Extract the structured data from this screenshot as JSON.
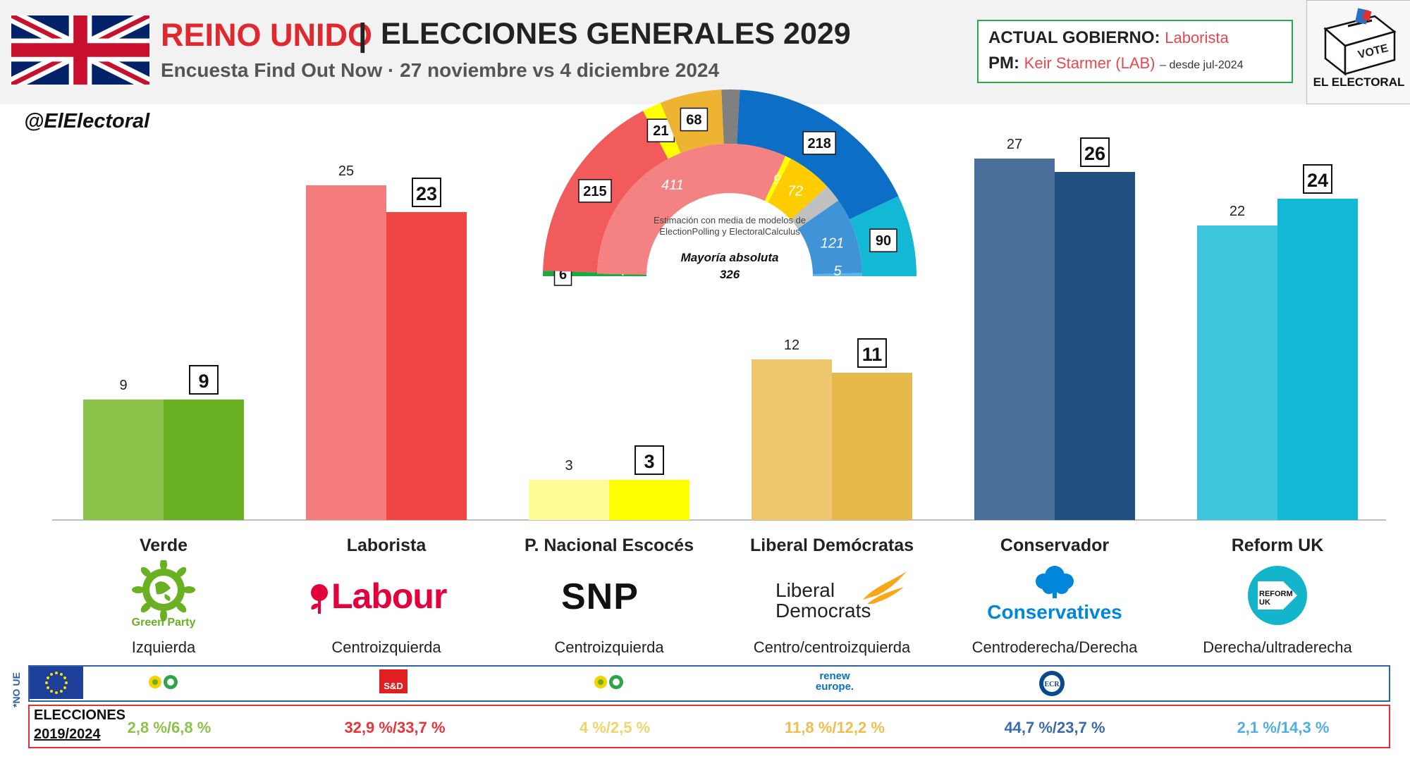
{
  "header": {
    "country": "REINO UNIDO",
    "separator": "|",
    "title": "ELECCIONES GENERALES 2029",
    "subtitle": "Encuesta Find Out Now · 27 noviembre vs 4 diciembre 2024"
  },
  "government": {
    "label_gov": "ACTUAL GOBIERNO:",
    "gov_value": "Laborista",
    "label_pm": "PM:",
    "pm_value": "Keir Starmer (LAB)",
    "pm_since": "– desde jul-2024"
  },
  "logo": {
    "vote": "VOTE",
    "name": "EL ELECTORAL"
  },
  "handle": "@ElElectoral",
  "colors": {
    "verde": [
      "#8bc34a",
      "#6ab023"
    ],
    "laborista": [
      "#f47c7c",
      "#ef4545"
    ],
    "snp": [
      "#fdfd96",
      "#ffff00"
    ],
    "libdem": [
      "#edc66e",
      "#e7b94a"
    ],
    "conservador": [
      "#4a6f9a",
      "#214f80"
    ],
    "reform": [
      "#3ec6dc",
      "#12b8d4"
    ]
  },
  "chart_data": [
    {
      "type": "bar",
      "categories": [
        "Verde",
        "Laborista",
        "P. Nacional Escocés",
        "Liberal Demócratas",
        "Conservador",
        "Reform UK"
      ],
      "series": [
        {
          "values": [
            9,
            25,
            3,
            12,
            27,
            22
          ]
        },
        {
          "values": [
            9,
            23,
            3,
            11,
            26,
            24
          ]
        }
      ],
      "ylim": [
        0,
        28
      ]
    },
    {
      "type": "pie",
      "subtype": "hemicycle",
      "outer_ring": [
        {
          "value": 6,
          "label": "6",
          "color": "#1fa846"
        },
        {
          "value": 215,
          "label": "215",
          "color": "#f15b5b"
        },
        {
          "value": 21,
          "label": "21",
          "color": "#ffff00"
        },
        {
          "value": 68,
          "label": "68",
          "color": "#eeb331"
        },
        {
          "value": 20,
          "label": "",
          "color": "#808080"
        },
        {
          "value": 218,
          "label": "218",
          "color": "#0c6ec4"
        },
        {
          "value": 90,
          "label": "90",
          "color": "#12b8d4"
        }
      ],
      "inner_ring": [
        {
          "value": 4,
          "label": "4",
          "color": "#1fa846"
        },
        {
          "value": 411,
          "label": "411",
          "color": "#f58282"
        },
        {
          "value": 9,
          "label": "9",
          "color": "#ffff00"
        },
        {
          "value": 72,
          "label": "72",
          "color": "#ffcc00"
        },
        {
          "value": 28,
          "label": "",
          "color": "#c0c0c0"
        },
        {
          "value": 121,
          "label": "121",
          "color": "#3f93d6"
        },
        {
          "value": 5,
          "label": "5",
          "color": "#5ab8e8"
        }
      ],
      "note": "Estimación con media de modelos de ElectionPolling y ElectoralCalculus",
      "majority_label": "Mayoría absoluta",
      "majority_value": "326"
    }
  ],
  "ideology": [
    "Izquierda",
    "Centroizquierda",
    "Centroizquierda",
    "Centro/centroizquierda",
    "Centroderecha/Derecha",
    "Derecha/ultraderecha"
  ],
  "party_logos": [
    "Green Party",
    "Labour",
    "SNP",
    "Liberal Democrats",
    "Conservatives",
    "REFORM UK"
  ],
  "eu_groups": [
    "greens-efa",
    "S&D",
    "greens-efa",
    "renew europe.",
    "ECR",
    ""
  ],
  "no_ue": "*NO UE",
  "elections": {
    "label_line1": "ELECCIONES",
    "label_line2": "2019/2024",
    "values": [
      "2,8 %/6,8 %",
      "32,9 %/33,7 %",
      "4 %/2,5 %",
      "11,8 %/12,2 %",
      "44,7 %/23,7 %",
      "2,1 %/14,3 %"
    ],
    "colors": [
      "#8bc34a",
      "#e8343a",
      "#f3d36b",
      "#eebe50",
      "#3a6aa8",
      "#4fb0e0"
    ]
  }
}
